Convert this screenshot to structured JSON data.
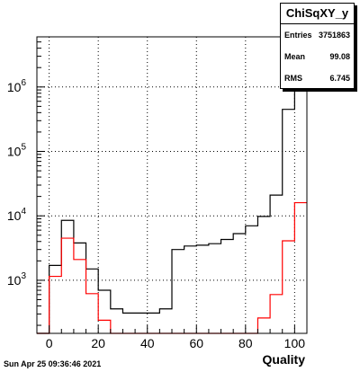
{
  "chart_data": {
    "type": "histogram",
    "x_label": "Quality",
    "x_range": [
      -5,
      105
    ],
    "y_log": true,
    "y_range": [
      150,
      6000000
    ],
    "x_ticks": [
      0,
      20,
      40,
      60,
      80,
      100
    ],
    "y_ticks": [
      {
        "value": 1000,
        "base": "10",
        "exp": "3"
      },
      {
        "value": 10000,
        "base": "10",
        "exp": "4"
      },
      {
        "value": 100000,
        "base": "10",
        "exp": "5"
      },
      {
        "value": 1000000,
        "base": "10",
        "exp": "6"
      }
    ],
    "grid": true,
    "series": [
      {
        "color": "#000000",
        "bins": [
          [
            -5,
            0,
            150
          ],
          [
            0,
            5,
            1700
          ],
          [
            5,
            10,
            8500
          ],
          [
            10,
            15,
            3800
          ],
          [
            15,
            20,
            1500
          ],
          [
            20,
            25,
            700
          ],
          [
            25,
            30,
            360
          ],
          [
            30,
            45,
            310
          ],
          [
            45,
            50,
            360
          ],
          [
            50,
            55,
            3000
          ],
          [
            55,
            60,
            3400
          ],
          [
            60,
            65,
            3500
          ],
          [
            65,
            70,
            3700
          ],
          [
            70,
            75,
            4300
          ],
          [
            75,
            80,
            5300
          ],
          [
            80,
            85,
            7000
          ],
          [
            85,
            90,
            9800
          ],
          [
            90,
            95,
            21000
          ],
          [
            95,
            100,
            450000
          ],
          [
            100,
            105,
            5500000
          ]
        ]
      },
      {
        "color": "#ff0000",
        "bins": [
          [
            -5,
            0,
            150
          ],
          [
            0,
            5,
            1150
          ],
          [
            5,
            10,
            4500
          ],
          [
            10,
            15,
            2100
          ],
          [
            15,
            20,
            620
          ],
          [
            20,
            25,
            240
          ],
          [
            25,
            85,
            150
          ],
          [
            85,
            90,
            260
          ],
          [
            90,
            95,
            600
          ],
          [
            95,
            100,
            4100
          ],
          [
            100,
            105,
            16000
          ]
        ]
      }
    ]
  },
  "stats": {
    "title": "ChiSqXY_y",
    "rows": [
      {
        "label": "Entries",
        "value": "3751863"
      },
      {
        "label": "Mean",
        "value": "99.08"
      },
      {
        "label": "RMS",
        "value": "6.745"
      }
    ]
  },
  "footer": "Sun Apr 25 09:36:46 2021"
}
